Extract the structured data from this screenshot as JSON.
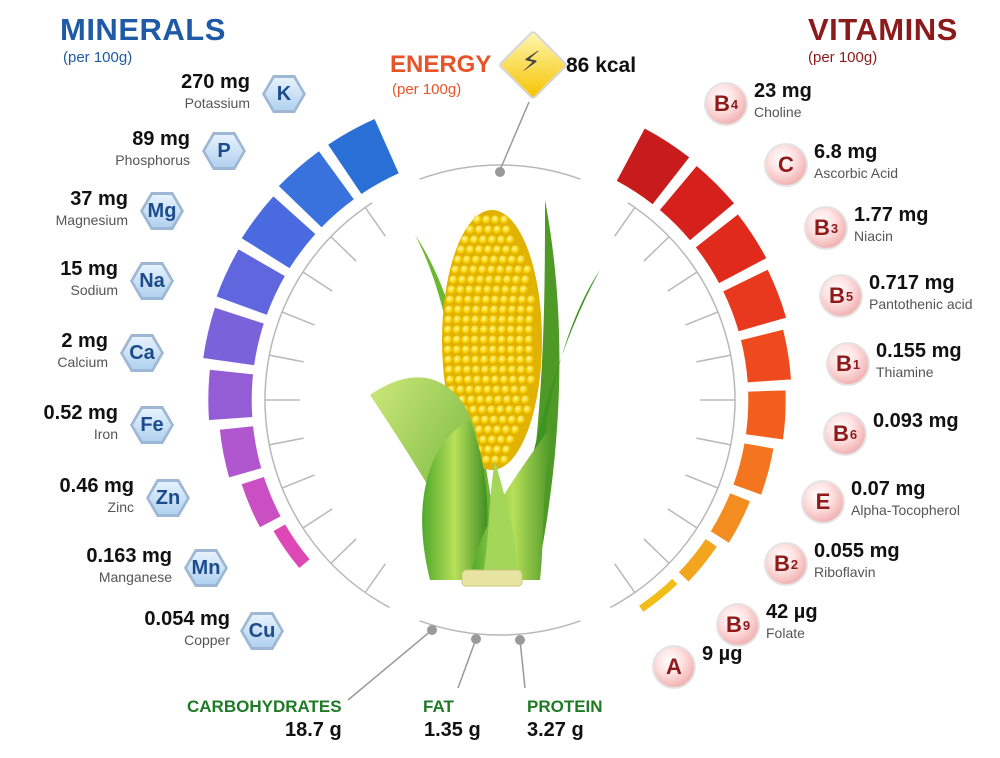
{
  "titles": {
    "minerals": "MINERALS",
    "minerals_sub": "(per 100g)",
    "vitamins": "VITAMINS",
    "vitamins_sub": "(per 100g)",
    "energy": "ENERGY",
    "energy_sub": "(per 100g)",
    "energy_value": "86 kcal"
  },
  "minerals": [
    {
      "symbol": "K",
      "value": "270 mg",
      "name": "Potassium",
      "color": "#2a6fd6"
    },
    {
      "symbol": "P",
      "value": "89 mg",
      "name": "Phosphorus",
      "color": "#3a72dd"
    },
    {
      "symbol": "Mg",
      "value": "37 mg",
      "name": "Magnesium",
      "color": "#4a6be0"
    },
    {
      "symbol": "Na",
      "value": "15 mg",
      "name": "Sodium",
      "color": "#5f66de"
    },
    {
      "symbol": "Ca",
      "value": "2 mg",
      "name": "Calcium",
      "color": "#7a62da"
    },
    {
      "symbol": "Fe",
      "value": "0.52 mg",
      "name": "Iron",
      "color": "#945dd6"
    },
    {
      "symbol": "Zn",
      "value": "0.46 mg",
      "name": "Zinc",
      "color": "#b057cf"
    },
    {
      "symbol": "Mn",
      "value": "0.163 mg",
      "name": "Manganese",
      "color": "#c94fc2"
    },
    {
      "symbol": "Cu",
      "value": "0.054 mg",
      "name": "Copper",
      "color": "#dd47b6"
    }
  ],
  "vitamins": [
    {
      "symbol": "B",
      "sub": "4",
      "value": "23 mg",
      "name": "Choline",
      "color": "#c81c1c"
    },
    {
      "symbol": "C",
      "sub": "",
      "value": "6.8 mg",
      "name": "Ascorbic Acid",
      "color": "#d5201c"
    },
    {
      "symbol": "B",
      "sub": "3",
      "value": "1.77 mg",
      "name": "Niacin",
      "color": "#df2a1c"
    },
    {
      "symbol": "B",
      "sub": "5",
      "value": "0.717 mg",
      "name": "Pantothenic acid",
      "color": "#e8381d"
    },
    {
      "symbol": "B",
      "sub": "1",
      "value": "0.155 mg",
      "name": "Thiamine",
      "color": "#ee4a1e"
    },
    {
      "symbol": "B",
      "sub": "6",
      "value": "0.093 mg",
      "name": "",
      "color": "#f25e1e"
    },
    {
      "symbol": "E",
      "sub": "",
      "value": "0.07 mg",
      "name": "Alpha-Tocopherol",
      "color": "#f47520"
    },
    {
      "symbol": "B",
      "sub": "2",
      "value": "0.055 mg",
      "name": "Riboflavin",
      "color": "#f48d20"
    },
    {
      "symbol": "B",
      "sub": "9",
      "value": "42 µg",
      "name": "Folate",
      "color": "#f3a51d"
    },
    {
      "symbol": "A",
      "sub": "",
      "value": "9 µg",
      "name": "",
      "color": "#f2bd18"
    }
  ],
  "macros": [
    {
      "name": "CARBOHYDRATES",
      "value": "18.7 g"
    },
    {
      "name": "FAT",
      "value": "1.35 g"
    },
    {
      "name": "PROTEIN",
      "value": "3.27 g"
    }
  ],
  "colors": {
    "minerals_accent": "#1f5aa6",
    "vitamins_accent": "#8b1a1a",
    "energy_accent": "#e8542a",
    "macro_accent": "#1f7a26"
  },
  "icons": {
    "energy": "lightning-bolt-icon",
    "center": "corn-cob-image"
  }
}
